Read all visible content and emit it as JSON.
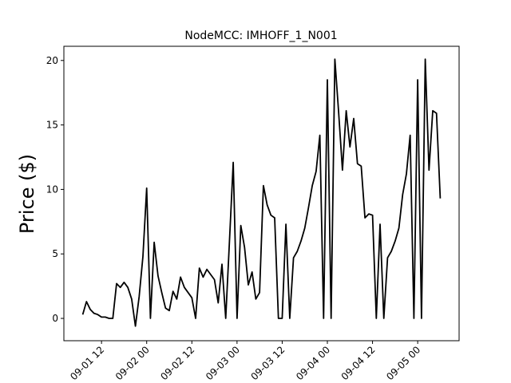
{
  "chart_data": {
    "type": "line",
    "title": "NodeMCC: IMHOFF_1_N001",
    "y_label": "Price ($)",
    "x": [
      "09-01 07",
      "09-01 08",
      "09-01 09",
      "09-01 10",
      "09-01 11",
      "09-01 12",
      "09-01 13",
      "09-01 14",
      "09-01 15",
      "09-01 16",
      "09-01 17",
      "09-01 18",
      "09-01 19",
      "09-01 20",
      "09-01 21",
      "09-01 22",
      "09-01 23",
      "09-02 00",
      "09-02 01",
      "09-02 02",
      "09-02 03",
      "09-02 04",
      "09-02 05",
      "09-02 06",
      "09-02 07",
      "09-02 08",
      "09-02 09",
      "09-02 10",
      "09-02 11",
      "09-02 12",
      "09-02 13",
      "09-02 14",
      "09-02 15",
      "09-02 16",
      "09-02 17",
      "09-02 18",
      "09-02 19",
      "09-02 20",
      "09-02 21",
      "09-02 22",
      "09-02 23",
      "09-03 00",
      "09-03 01",
      "09-03 02",
      "09-03 03",
      "09-03 04",
      "09-03 05",
      "09-03 06",
      "09-03 07",
      "09-03 08",
      "09-03 09",
      "09-03 10",
      "09-03 11",
      "09-03 12",
      "09-03 13",
      "09-03 14",
      "09-03 15",
      "09-03 16",
      "09-03 17",
      "09-03 18",
      "09-03 19",
      "09-03 20",
      "09-03 21",
      "09-03 22",
      "09-03 23",
      "09-04 00",
      "09-04 01",
      "09-04 02",
      "09-04 03",
      "09-04 04",
      "09-04 05",
      "09-04 06",
      "09-04 07",
      "09-04 08",
      "09-04 09",
      "09-04 10",
      "09-04 11",
      "09-04 12",
      "09-04 13",
      "09-04 14",
      "09-04 15",
      "09-04 16",
      "09-04 17",
      "09-04 18",
      "09-04 19",
      "09-04 20",
      "09-04 21",
      "09-04 22",
      "09-04 23",
      "09-05 00",
      "09-05 01",
      "09-05 02",
      "09-05 03",
      "09-05 04",
      "09-05 05",
      "09-05 06"
    ],
    "series": [
      {
        "color": "#000000",
        "values": [
          0.3,
          1.3,
          0.7,
          0.4,
          0.3,
          0.1,
          0.1,
          0,
          0,
          2.7,
          2.4,
          2.8,
          2.4,
          1.5,
          -0.6,
          1.7,
          4.8,
          10.1,
          0,
          5.9,
          3.3,
          2.0,
          0.8,
          0.6,
          2.1,
          1.5,
          3.2,
          2.4,
          2.0,
          1.6,
          0,
          3.9,
          3.2,
          3.8,
          3.4,
          3.0,
          1.2,
          4.2,
          0,
          6.0,
          12.1,
          0,
          7.2,
          5.5,
          2.6,
          3.6,
          1.5,
          2.0,
          10.3,
          8.8,
          8.0,
          7.8,
          0,
          0,
          7.3,
          0,
          4.7,
          5.2,
          6.0,
          7.0,
          8.6,
          10.3,
          11.4,
          14.2,
          0,
          18.5,
          0,
          20.1,
          16.0,
          11.5,
          16.1,
          13.3,
          15.5,
          12.0,
          11.8,
          7.8,
          8.1,
          8.0,
          0,
          7.3,
          0,
          4.7,
          5.2,
          6.0,
          7.0,
          9.6,
          11.2,
          14.2,
          0,
          18.5,
          0,
          20.1,
          11.5,
          16.1,
          15.9,
          9.3
        ]
      }
    ],
    "xlim": [
      "09-01 02",
      "09-05 11"
    ],
    "xticks": [
      "09-01 12",
      "09-02 00",
      "09-02 12",
      "09-03 00",
      "09-03 12",
      "09-04 00",
      "09-04 12",
      "09-05 00"
    ],
    "ylim": [
      -1.73,
      21.1
    ],
    "yticks": [
      0,
      5,
      10,
      15,
      20
    ]
  }
}
